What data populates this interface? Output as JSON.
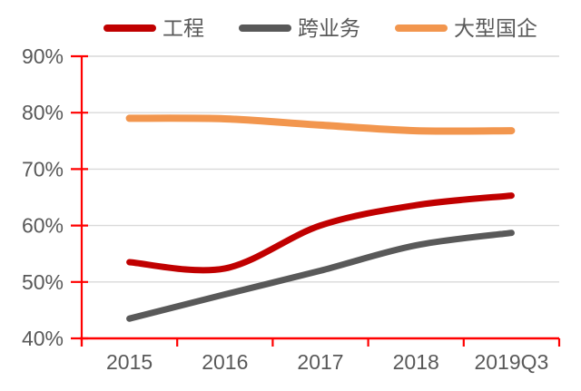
{
  "chart_data": {
    "type": "line",
    "categories": [
      "2015",
      "2016",
      "2017",
      "2018",
      "2019Q3"
    ],
    "series": [
      {
        "name": "工程",
        "color": "#C00000",
        "stroke_width": 7,
        "values": [
          53.5,
          52.4,
          60.0,
          63.6,
          65.3
        ]
      },
      {
        "name": "跨业务",
        "color": "#595959",
        "stroke_width": 7,
        "values": [
          43.5,
          47.8,
          52.0,
          56.5,
          58.7
        ]
      },
      {
        "name": "大型国企",
        "color": "#F2964E",
        "stroke_width": 8,
        "values": [
          79.0,
          78.9,
          77.8,
          76.8,
          76.8
        ]
      }
    ],
    "title": "",
    "xlabel": "",
    "ylabel": "",
    "ylim": [
      40,
      90
    ],
    "ytick_step": 10,
    "ytick_labels": [
      "40%",
      "50%",
      "60%",
      "70%",
      "80%",
      "90%"
    ],
    "grid": true,
    "smooth": true,
    "legend_position": "top",
    "colors": {
      "axis": "#FF0000",
      "gridline": "#D9D9D9",
      "tick_label": "#595959"
    }
  }
}
